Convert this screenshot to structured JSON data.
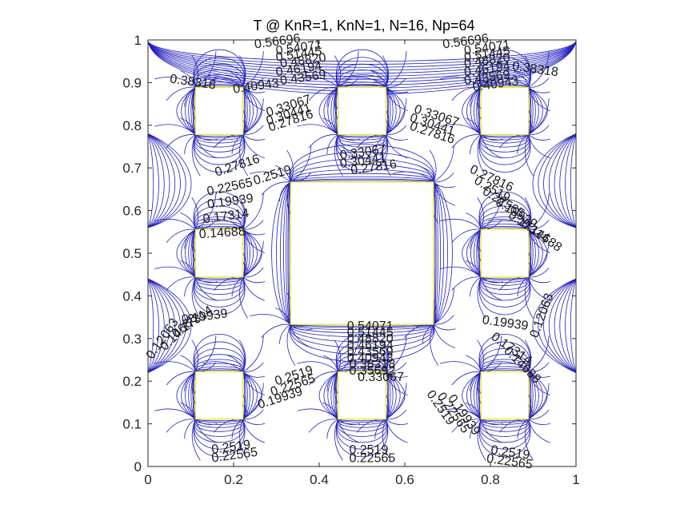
{
  "chart_data": {
    "type": "contour",
    "title": "T @ KnR=1, KnN=1, N=16, Np=64",
    "xlabel": "",
    "ylabel": "",
    "xlim": [
      0,
      1
    ],
    "ylim": [
      0,
      1
    ],
    "x_ticks": [
      0,
      0.2,
      0.4,
      0.6,
      0.8,
      1
    ],
    "y_ticks": [
      0,
      0.1,
      0.2,
      0.3,
      0.4,
      0.5,
      0.6,
      0.7,
      0.8,
      0.9,
      1
    ],
    "x_tick_labels": [
      "0",
      "0.2",
      "0.4",
      "0.6",
      "0.8",
      "1"
    ],
    "y_tick_labels": [
      "0",
      "0.1",
      "0.2",
      "0.3",
      "0.4",
      "0.5",
      "0.6",
      "0.7",
      "0.8",
      "0.9",
      "1"
    ],
    "grid": false,
    "line_color": "#1f1fbf",
    "obstacle_color": "#e6e600",
    "obstacles": [
      {
        "x": [
          0.111,
          0.222
        ],
        "y": [
          0.778,
          0.889
        ]
      },
      {
        "x": [
          0.444,
          0.556
        ],
        "y": [
          0.778,
          0.889
        ]
      },
      {
        "x": [
          0.778,
          0.889
        ],
        "y": [
          0.778,
          0.889
        ]
      },
      {
        "x": [
          0.111,
          0.222
        ],
        "y": [
          0.444,
          0.556
        ]
      },
      {
        "x": [
          0.333,
          0.667
        ],
        "y": [
          0.333,
          0.667
        ]
      },
      {
        "x": [
          0.778,
          0.889
        ],
        "y": [
          0.444,
          0.556
        ]
      },
      {
        "x": [
          0.111,
          0.222
        ],
        "y": [
          0.111,
          0.222
        ]
      },
      {
        "x": [
          0.444,
          0.556
        ],
        "y": [
          0.111,
          0.222
        ]
      },
      {
        "x": [
          0.778,
          0.889
        ],
        "y": [
          0.111,
          0.222
        ]
      }
    ],
    "contour_labels": [
      {
        "text": "0.56696",
        "x": 0.25,
        "y": 0.98,
        "angle": 8
      },
      {
        "text": "0.54071",
        "x": 0.3,
        "y": 0.965,
        "angle": 8
      },
      {
        "text": "0.51445",
        "x": 0.3,
        "y": 0.95,
        "angle": 8
      },
      {
        "text": "0.48820",
        "x": 0.31,
        "y": 0.935,
        "angle": 8
      },
      {
        "text": "0.46194",
        "x": 0.3,
        "y": 0.915,
        "angle": 8
      },
      {
        "text": "0.43569",
        "x": 0.31,
        "y": 0.895,
        "angle": 8
      },
      {
        "text": "0.40943",
        "x": 0.2,
        "y": 0.875,
        "angle": 8
      },
      {
        "text": "0.38318",
        "x": 0.05,
        "y": 0.9,
        "angle": -8
      },
      {
        "text": "0.56696",
        "x": 0.69,
        "y": 0.98,
        "angle": 8
      },
      {
        "text": "0.54071",
        "x": 0.74,
        "y": 0.965,
        "angle": 8
      },
      {
        "text": "0.51445",
        "x": 0.74,
        "y": 0.95,
        "angle": 8
      },
      {
        "text": "0.48820",
        "x": 0.74,
        "y": 0.935,
        "angle": 8
      },
      {
        "text": "0.46194",
        "x": 0.74,
        "y": 0.915,
        "angle": 8
      },
      {
        "text": "0.43569",
        "x": 0.74,
        "y": 0.895,
        "angle": 8
      },
      {
        "text": "0.40943",
        "x": 0.76,
        "y": 0.88,
        "angle": 8
      },
      {
        "text": "0.38318",
        "x": 0.85,
        "y": 0.93,
        "angle": -8
      },
      {
        "text": "0.33067",
        "x": 0.28,
        "y": 0.82,
        "angle": 18
      },
      {
        "text": "0.30441",
        "x": 0.28,
        "y": 0.8,
        "angle": 18
      },
      {
        "text": "0.27816",
        "x": 0.285,
        "y": 0.785,
        "angle": 18
      },
      {
        "text": "0.33067",
        "x": 0.62,
        "y": 0.83,
        "angle": -18
      },
      {
        "text": "0.30441",
        "x": 0.61,
        "y": 0.81,
        "angle": -18
      },
      {
        "text": "0.27816",
        "x": 0.61,
        "y": 0.79,
        "angle": -18
      },
      {
        "text": "0.33067",
        "x": 0.45,
        "y": 0.72,
        "angle": 8
      },
      {
        "text": "0.30441",
        "x": 0.45,
        "y": 0.7,
        "angle": 8
      },
      {
        "text": "0.27816",
        "x": 0.475,
        "y": 0.685,
        "angle": 8
      },
      {
        "text": "0.27816",
        "x": 0.16,
        "y": 0.68,
        "angle": 18
      },
      {
        "text": "0.2519",
        "x": 0.25,
        "y": 0.66,
        "angle": 18
      },
      {
        "text": "0.22565",
        "x": 0.14,
        "y": 0.635,
        "angle": 12
      },
      {
        "text": "0.19939",
        "x": 0.14,
        "y": 0.605,
        "angle": 8
      },
      {
        "text": "0.17314",
        "x": 0.13,
        "y": 0.57,
        "angle": 8
      },
      {
        "text": "0.14688",
        "x": 0.12,
        "y": 0.535,
        "angle": 4
      },
      {
        "text": "0.27816",
        "x": 0.75,
        "y": 0.69,
        "angle": -25
      },
      {
        "text": "0.2519",
        "x": 0.76,
        "y": 0.665,
        "angle": -30
      },
      {
        "text": "0.22565",
        "x": 0.78,
        "y": 0.64,
        "angle": -32
      },
      {
        "text": "0.19939",
        "x": 0.81,
        "y": 0.615,
        "angle": -32
      },
      {
        "text": "0.17314",
        "x": 0.84,
        "y": 0.585,
        "angle": -35
      },
      {
        "text": "0.14688",
        "x": 0.87,
        "y": 0.565,
        "angle": -35
      },
      {
        "text": "0.19939",
        "x": 0.08,
        "y": 0.335,
        "angle": 8
      },
      {
        "text": "0.17314",
        "x": 0.065,
        "y": 0.3,
        "angle": 35
      },
      {
        "text": "0.14688",
        "x": 0.04,
        "y": 0.27,
        "angle": 45
      },
      {
        "text": "0.12063",
        "x": 0.01,
        "y": 0.25,
        "angle": 55
      },
      {
        "text": "0.19939",
        "x": 0.78,
        "y": 0.335,
        "angle": -8
      },
      {
        "text": "0.17314",
        "x": 0.8,
        "y": 0.3,
        "angle": -35
      },
      {
        "text": "0.14688",
        "x": 0.83,
        "y": 0.27,
        "angle": -45
      },
      {
        "text": "0.12063",
        "x": 0.91,
        "y": 0.3,
        "angle": 70
      },
      {
        "text": "0.54071",
        "x": 0.465,
        "y": 0.32,
        "angle": 0
      },
      {
        "text": "0.51445",
        "x": 0.465,
        "y": 0.305,
        "angle": 0
      },
      {
        "text": "0.48820",
        "x": 0.465,
        "y": 0.29,
        "angle": 0
      },
      {
        "text": "0.46194",
        "x": 0.465,
        "y": 0.275,
        "angle": 0
      },
      {
        "text": "0.43569",
        "x": 0.465,
        "y": 0.26,
        "angle": 0
      },
      {
        "text": "0.40943",
        "x": 0.465,
        "y": 0.245,
        "angle": 0
      },
      {
        "text": "0.38318",
        "x": 0.47,
        "y": 0.23,
        "angle": 0
      },
      {
        "text": "0.35692",
        "x": 0.47,
        "y": 0.215,
        "angle": 0
      },
      {
        "text": "0.33067",
        "x": 0.49,
        "y": 0.2,
        "angle": 0
      },
      {
        "text": "0.2519",
        "x": 0.3,
        "y": 0.19,
        "angle": 18
      },
      {
        "text": "0.22565",
        "x": 0.29,
        "y": 0.165,
        "angle": 18
      },
      {
        "text": "0.19939",
        "x": 0.26,
        "y": 0.135,
        "angle": 18
      },
      {
        "text": "0.2519",
        "x": 0.65,
        "y": 0.17,
        "angle": -55
      },
      {
        "text": "0.22565",
        "x": 0.675,
        "y": 0.165,
        "angle": -55
      },
      {
        "text": "0.19939",
        "x": 0.7,
        "y": 0.16,
        "angle": -55
      },
      {
        "text": "0.2519",
        "x": 0.15,
        "y": 0.03,
        "angle": 8
      },
      {
        "text": "0.22565",
        "x": 0.15,
        "y": 0.01,
        "angle": 8
      },
      {
        "text": "0.2519",
        "x": 0.47,
        "y": 0.03,
        "angle": 0
      },
      {
        "text": "0.22565",
        "x": 0.47,
        "y": 0.01,
        "angle": 0
      },
      {
        "text": "0.2519",
        "x": 0.8,
        "y": 0.03,
        "angle": -8
      },
      {
        "text": "0.22565",
        "x": 0.79,
        "y": 0.01,
        "angle": -8
      }
    ]
  }
}
